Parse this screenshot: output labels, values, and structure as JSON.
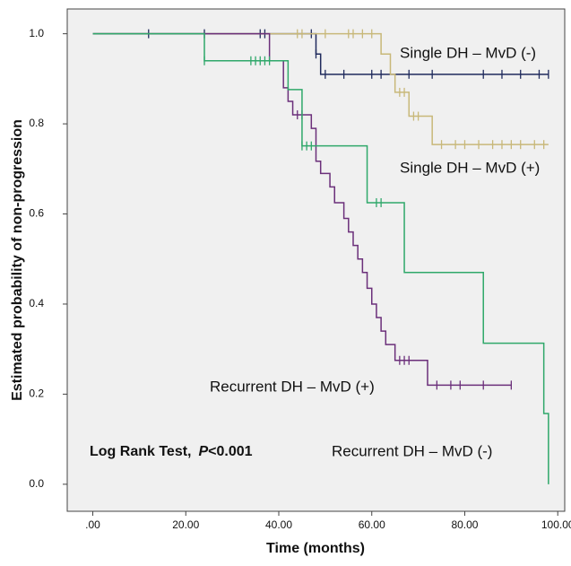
{
  "chart_data": {
    "type": "kaplan-meier",
    "xlabel": "Time (months)",
    "ylabel": "Estimated probability of non-progression",
    "xlim": [
      -5.5,
      101.5
    ],
    "ylim": [
      -0.06,
      1.055
    ],
    "xticks": [
      {
        "value": 0,
        "label": ".00"
      },
      {
        "value": 20,
        "label": "20.00"
      },
      {
        "value": 40,
        "label": "40.00"
      },
      {
        "value": 60,
        "label": "60.00"
      },
      {
        "value": 80,
        "label": "80.00"
      },
      {
        "value": 100,
        "label": "100.00"
      }
    ],
    "yticks": [
      {
        "value": 0,
        "label": "0.0"
      },
      {
        "value": 0.2,
        "label": "0.2"
      },
      {
        "value": 0.4,
        "label": "0.4"
      },
      {
        "value": 0.6,
        "label": "0.6"
      },
      {
        "value": 0.8,
        "label": "0.8"
      },
      {
        "value": 1,
        "label": "1.0"
      }
    ],
    "annotation": {
      "prefix": "Log Rank Test,",
      "italic": "P",
      "suffix": "<0.001"
    },
    "series": [
      {
        "name": "Single DH – MvD (-)",
        "color": "#1f2a5c",
        "x": [
          0,
          48,
          49,
          98
        ],
        "values": [
          1,
          0.955,
          0.91,
          0.91
        ],
        "censored": {
          "x": [
            12,
            24,
            36,
            37,
            47,
            48,
            50,
            54,
            60,
            62,
            68,
            73,
            84,
            88,
            92,
            96,
            98
          ],
          "values": [
            1,
            1,
            1,
            1,
            1,
            0.955,
            0.91,
            0.91,
            0.91,
            0.91,
            0.91,
            0.91,
            0.91,
            0.91,
            0.91,
            0.91,
            0.91
          ]
        }
      },
      {
        "name": "Single DH – MvD (+)",
        "color": "#c8b879",
        "x": [
          0,
          62,
          64,
          65,
          68,
          73,
          98
        ],
        "values": [
          1,
          0.955,
          0.91,
          0.87,
          0.817,
          0.754,
          0.754
        ],
        "censored": {
          "x": [
            44,
            45,
            50,
            55,
            56,
            58,
            60,
            66,
            67,
            69,
            70,
            75,
            78,
            80,
            83,
            86,
            88,
            90,
            92,
            95,
            97
          ],
          "values": [
            1,
            1,
            1,
            1,
            1,
            1,
            1,
            0.87,
            0.87,
            0.817,
            0.817,
            0.754,
            0.754,
            0.754,
            0.754,
            0.754,
            0.754,
            0.754,
            0.754,
            0.754,
            0.754
          ]
        }
      },
      {
        "name": "Recurrent DH – MvD (+)",
        "color": "#6b2f7a",
        "x": [
          0,
          38,
          41,
          42,
          43,
          47,
          48,
          49,
          51,
          52,
          54,
          55,
          56,
          57,
          58,
          59,
          60,
          61,
          62,
          63,
          65,
          72,
          90
        ],
        "values": [
          1,
          0.94,
          0.88,
          0.85,
          0.82,
          0.79,
          0.717,
          0.69,
          0.66,
          0.625,
          0.59,
          0.56,
          0.53,
          0.5,
          0.47,
          0.435,
          0.4,
          0.37,
          0.34,
          0.31,
          0.275,
          0.22,
          0.22
        ],
        "censored": {
          "x": [
            44,
            45,
            66,
            67,
            68,
            74,
            77,
            79,
            84,
            90
          ],
          "values": [
            0.82,
            0.82,
            0.275,
            0.275,
            0.275,
            0.22,
            0.22,
            0.22,
            0.22,
            0.22
          ]
        }
      },
      {
        "name": "Recurrent DH – MvD (-)",
        "color": "#2fa86a",
        "x": [
          0,
          24,
          42,
          45,
          59,
          67,
          84,
          97,
          98
        ],
        "values": [
          1,
          0.94,
          0.876,
          0.751,
          0.625,
          0.47,
          0.313,
          0.157,
          0
        ],
        "censored": {
          "x": [
            24,
            34,
            35,
            36,
            37,
            38,
            45,
            46,
            47,
            61,
            62
          ],
          "values": [
            0.94,
            0.94,
            0.94,
            0.94,
            0.94,
            0.94,
            0.751,
            0.751,
            0.751,
            0.625,
            0.625
          ]
        }
      }
    ]
  }
}
